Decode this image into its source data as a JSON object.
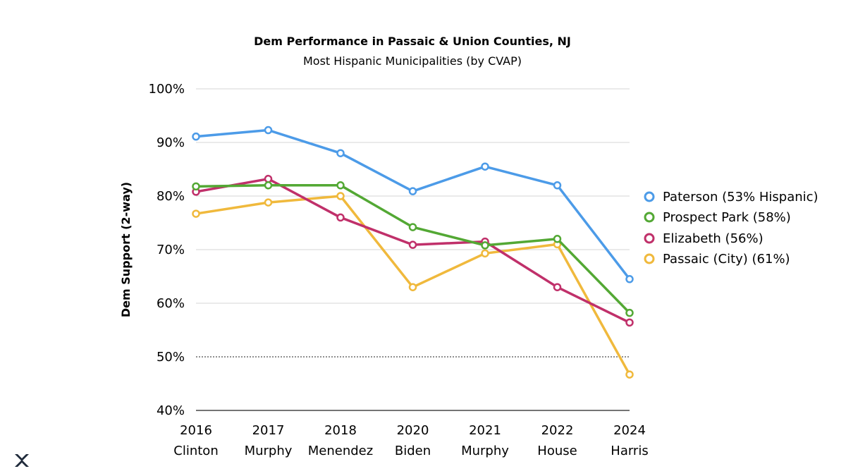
{
  "chart_data": {
    "type": "line",
    "title": "Dem Performance in Passaic & Union Counties, NJ",
    "subtitle": "Most Hispanic Municipalities (by CVAP)",
    "xlabel": "",
    "ylabel": "Dem Support (2-way)",
    "ylim": [
      40,
      100
    ],
    "yticks": [
      100,
      90,
      80,
      70,
      60,
      50,
      40
    ],
    "ytick_labels": [
      "100%",
      "90%",
      "80%",
      "70%",
      "60%",
      "50%",
      "40%"
    ],
    "categories": [
      {
        "year": "2016",
        "race": "Clinton"
      },
      {
        "year": "2017",
        "race": "Murphy"
      },
      {
        "year": "2018",
        "race": "Menendez"
      },
      {
        "year": "2020",
        "race": "Biden"
      },
      {
        "year": "2021",
        "race": "Murphy"
      },
      {
        "year": "2022",
        "race": "House"
      },
      {
        "year": "2024",
        "race": "Harris"
      }
    ],
    "reference_line": 50,
    "grid": true,
    "legend_position": "right",
    "series": [
      {
        "name": "Paterson (53% Hispanic)",
        "color": "#4c9be8",
        "values": [
          91.1,
          92.3,
          88.0,
          80.9,
          85.5,
          82.0,
          64.5
        ]
      },
      {
        "name": "Prospect Park (58%)",
        "color": "#53a834",
        "values": [
          81.8,
          82.0,
          82.0,
          74.2,
          70.8,
          72.0,
          58.2
        ]
      },
      {
        "name": "Elizabeth (56%)",
        "color": "#c0306a",
        "values": [
          80.8,
          83.2,
          76.0,
          70.9,
          71.5,
          63.0,
          56.4
        ]
      },
      {
        "name": "Passaic (City) (61%)",
        "color": "#f0b93c",
        "values": [
          76.7,
          78.8,
          80.0,
          63.0,
          69.3,
          71.0,
          46.7
        ]
      }
    ]
  }
}
